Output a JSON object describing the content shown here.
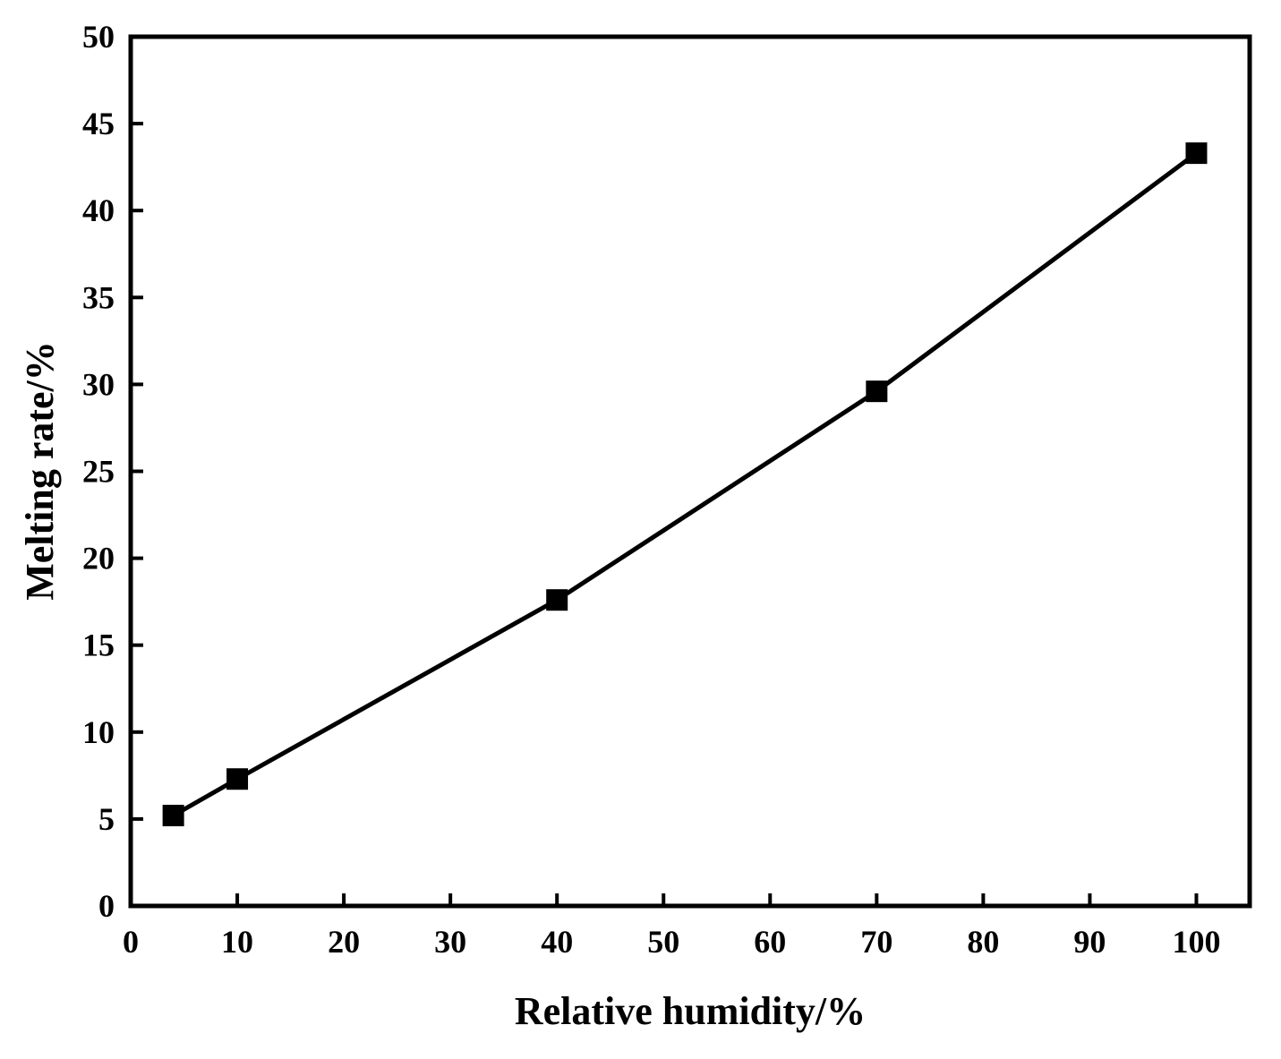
{
  "chart_data": {
    "type": "line",
    "title": "",
    "xlabel": "Relative humidity/%",
    "ylabel": "Melting rate/%",
    "xlim": [
      0,
      105
    ],
    "ylim": [
      0,
      50
    ],
    "xticks": [
      0,
      10,
      20,
      30,
      40,
      50,
      60,
      70,
      80,
      90,
      100
    ],
    "yticks": [
      0,
      5,
      10,
      15,
      20,
      25,
      30,
      35,
      40,
      45,
      50
    ],
    "grid": false,
    "legend": "none",
    "series": [
      {
        "marker": "square",
        "color": "#000000",
        "points": [
          {
            "x": 4,
            "y": 5.2
          },
          {
            "x": 10,
            "y": 7.3
          },
          {
            "x": 40,
            "y": 17.6
          },
          {
            "x": 70,
            "y": 29.6
          },
          {
            "x": 100,
            "y": 43.3
          }
        ]
      }
    ]
  }
}
